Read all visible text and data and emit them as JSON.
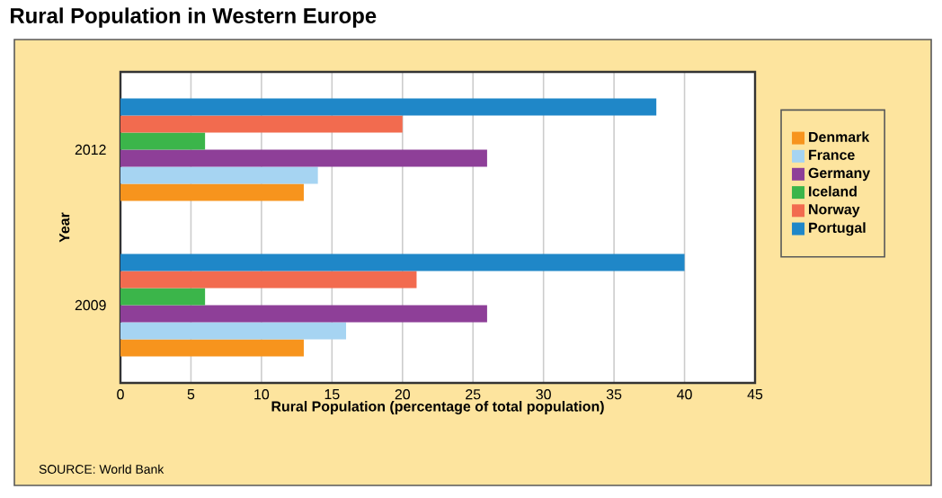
{
  "chart_data": {
    "type": "bar",
    "orientation": "horizontal",
    "title": "Rural Population in Western Europe",
    "xlabel": "Rural Population (percentage of total population)",
    "ylabel": "Year",
    "categories": [
      "2012",
      "2009"
    ],
    "series": [
      {
        "name": "Denmark",
        "color": "#f7941d",
        "values": [
          13,
          13
        ]
      },
      {
        "name": "France",
        "color": "#a6d4f2",
        "values": [
          14,
          16
        ]
      },
      {
        "name": "Germany",
        "color": "#8e3f98",
        "values": [
          26,
          26
        ]
      },
      {
        "name": "Iceland",
        "color": "#3bb54a",
        "values": [
          6,
          6
        ]
      },
      {
        "name": "Norway",
        "color": "#f26b4f",
        "values": [
          20,
          21
        ]
      },
      {
        "name": "Portugal",
        "color": "#1f87c8",
        "values": [
          38,
          40
        ]
      }
    ],
    "xlim": [
      0,
      45
    ],
    "xticks": [
      0,
      5,
      10,
      15,
      20,
      25,
      30,
      35,
      40,
      45
    ],
    "grid": "x",
    "legend": "right",
    "annotations": [
      "SOURCE: World Bank"
    ]
  }
}
